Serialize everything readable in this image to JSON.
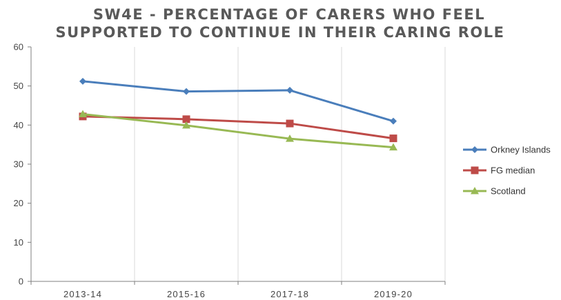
{
  "chart_data": {
    "type": "line",
    "title_lines": [
      "SW4E - PERCENTAGE OF CARERS WHO FEEL",
      "SUPPORTED TO CONTINUE IN THEIR CARING ROLE"
    ],
    "categories": [
      "2013-14",
      "2015-16",
      "2017-18",
      "2019-20"
    ],
    "ylim": [
      0,
      60
    ],
    "yticks": [
      0,
      10,
      20,
      30,
      40,
      50,
      60
    ],
    "legend_position": "right",
    "series": [
      {
        "name": "Orkney Islands",
        "values": [
          51.2,
          48.6,
          48.9,
          41.0
        ],
        "color": "#4a7ebb",
        "marker": "diamond"
      },
      {
        "name": "FG median",
        "values": [
          42.2,
          41.5,
          40.4,
          36.6
        ],
        "color": "#be4b48",
        "marker": "square"
      },
      {
        "name": "Scotland",
        "values": [
          42.8,
          39.9,
          36.5,
          34.3
        ],
        "color": "#98b954",
        "marker": "triangle"
      }
    ]
  }
}
